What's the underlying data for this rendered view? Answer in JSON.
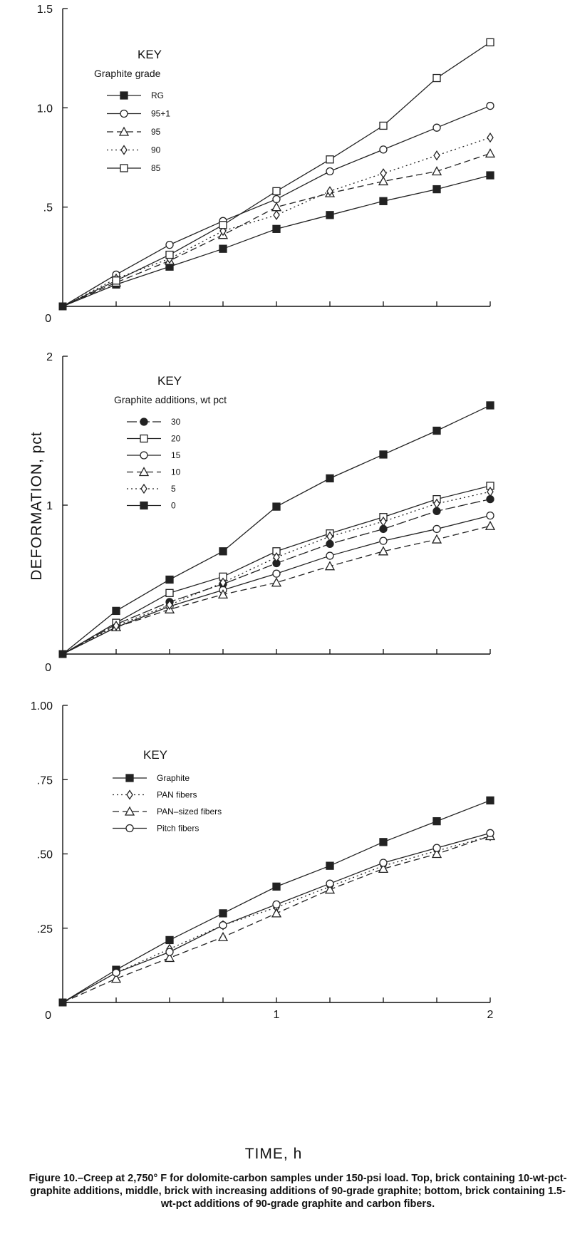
{
  "figure": {
    "ylabel": "DEFORMATION, pct",
    "xlabel": "TIME, h",
    "caption": "Figure 10.–Creep at 2,750° F for dolomite-carbon samples under 150-psi load. Top, brick containing 10-wt-pct-graphite additions, middle, brick with increasing additions of 90-grade graphite; bottom, brick containing 1.5-wt-pct additions of 90-grade graphite and carbon fibers."
  },
  "chart_data": [
    {
      "type": "line",
      "key_title": "KEY",
      "key_subtitle": "Graphite grade",
      "x": [
        0,
        0.25,
        0.5,
        0.75,
        1.0,
        1.25,
        1.5,
        1.75,
        2.0
      ],
      "xlim": [
        0,
        2
      ],
      "ylim": [
        0,
        1.5
      ],
      "yticks": [
        0,
        0.5,
        1.0,
        1.5
      ],
      "ytick_labels": [
        "0",
        ".5",
        "1.0",
        "1.5"
      ],
      "xticks": [
        0.25,
        0.5,
        0.75,
        1.0,
        1.25,
        1.5,
        1.75,
        2.0
      ],
      "series": [
        {
          "name": "RG",
          "marker": "filled-square",
          "dash": "",
          "values": [
            0,
            0.11,
            0.2,
            0.29,
            0.39,
            0.46,
            0.53,
            0.59,
            0.66
          ]
        },
        {
          "name": "95+1",
          "marker": "circle",
          "dash": "",
          "values": [
            0,
            0.16,
            0.31,
            0.43,
            0.54,
            0.68,
            0.79,
            0.9,
            1.01
          ]
        },
        {
          "name": "95",
          "marker": "triangle",
          "dash": "9 5",
          "values": [
            0,
            0.12,
            0.23,
            0.36,
            0.5,
            0.57,
            0.63,
            0.68,
            0.77
          ]
        },
        {
          "name": "90",
          "marker": "diamond",
          "dash": "2 4",
          "values": [
            0,
            0.14,
            0.24,
            0.38,
            0.46,
            0.58,
            0.67,
            0.76,
            0.85
          ]
        },
        {
          "name": "85",
          "marker": "square",
          "dash": "",
          "values": [
            0,
            0.13,
            0.26,
            0.41,
            0.58,
            0.74,
            0.91,
            1.15,
            1.33
          ]
        }
      ]
    },
    {
      "type": "line",
      "key_title": "KEY",
      "key_subtitle": "Graphite additions, wt pct",
      "x": [
        0,
        0.25,
        0.5,
        0.75,
        1.0,
        1.25,
        1.5,
        1.75,
        2.0
      ],
      "xlim": [
        0,
        2
      ],
      "ylim": [
        0,
        2
      ],
      "yticks": [
        0,
        1,
        2
      ],
      "ytick_labels": [
        "0",
        "1",
        "2"
      ],
      "xticks": [
        0.25,
        0.5,
        0.75,
        1.0,
        1.25,
        1.5,
        1.75,
        2.0
      ],
      "series": [
        {
          "name": "30",
          "marker": "filled-circle",
          "dash": "14 4",
          "values": [
            0,
            0.2,
            0.35,
            0.47,
            0.61,
            0.74,
            0.84,
            0.96,
            1.04
          ]
        },
        {
          "name": "20",
          "marker": "square",
          "dash": "",
          "values": [
            0,
            0.21,
            0.41,
            0.52,
            0.69,
            0.81,
            0.92,
            1.04,
            1.13
          ]
        },
        {
          "name": "15",
          "marker": "circle",
          "dash": "",
          "values": [
            0,
            0.18,
            0.32,
            0.43,
            0.54,
            0.66,
            0.76,
            0.84,
            0.93
          ]
        },
        {
          "name": "10",
          "marker": "triangle",
          "dash": "9 5",
          "values": [
            0,
            0.18,
            0.3,
            0.4,
            0.48,
            0.59,
            0.69,
            0.77,
            0.86
          ]
        },
        {
          "name": "5",
          "marker": "diamond",
          "dash": "2 4",
          "values": [
            0,
            0.19,
            0.33,
            0.48,
            0.65,
            0.79,
            0.89,
            1.01,
            1.09
          ]
        },
        {
          "name": "0",
          "marker": "filled-square",
          "dash": "",
          "values": [
            0,
            0.29,
            0.5,
            0.69,
            0.99,
            1.18,
            1.34,
            1.5,
            1.67
          ]
        }
      ]
    },
    {
      "type": "line",
      "key_title": "KEY",
      "key_subtitle": "",
      "x": [
        0,
        0.25,
        0.5,
        0.75,
        1.0,
        1.25,
        1.5,
        1.75,
        2.0
      ],
      "xlim": [
        0,
        2
      ],
      "ylim": [
        0,
        1.0
      ],
      "yticks": [
        0,
        0.25,
        0.5,
        0.75,
        1.0
      ],
      "ytick_labels": [
        "0",
        ".25",
        ".50",
        ".75",
        "1.00"
      ],
      "xticks": [
        0.25,
        0.5,
        0.75,
        1.0,
        1.25,
        1.5,
        1.75,
        2.0
      ],
      "xtick_labels": {
        "1": "1",
        "2": "2"
      },
      "series": [
        {
          "name": "Graphite",
          "marker": "filled-square",
          "dash": "",
          "values": [
            0,
            0.11,
            0.21,
            0.3,
            0.39,
            0.46,
            0.54,
            0.61,
            0.68
          ]
        },
        {
          "name": "PAN fibers",
          "marker": "diamond",
          "dash": "2 4",
          "values": [
            0,
            0.1,
            0.18,
            0.26,
            0.32,
            0.39,
            0.46,
            0.51,
            0.56
          ]
        },
        {
          "name": "PAN–sized fibers",
          "marker": "triangle",
          "dash": "9 5",
          "values": [
            0,
            0.08,
            0.15,
            0.22,
            0.3,
            0.38,
            0.45,
            0.5,
            0.56
          ]
        },
        {
          "name": "Pitch fibers",
          "marker": "circle",
          "dash": "",
          "values": [
            0,
            0.1,
            0.17,
            0.26,
            0.33,
            0.4,
            0.47,
            0.52,
            0.57
          ]
        }
      ]
    }
  ]
}
